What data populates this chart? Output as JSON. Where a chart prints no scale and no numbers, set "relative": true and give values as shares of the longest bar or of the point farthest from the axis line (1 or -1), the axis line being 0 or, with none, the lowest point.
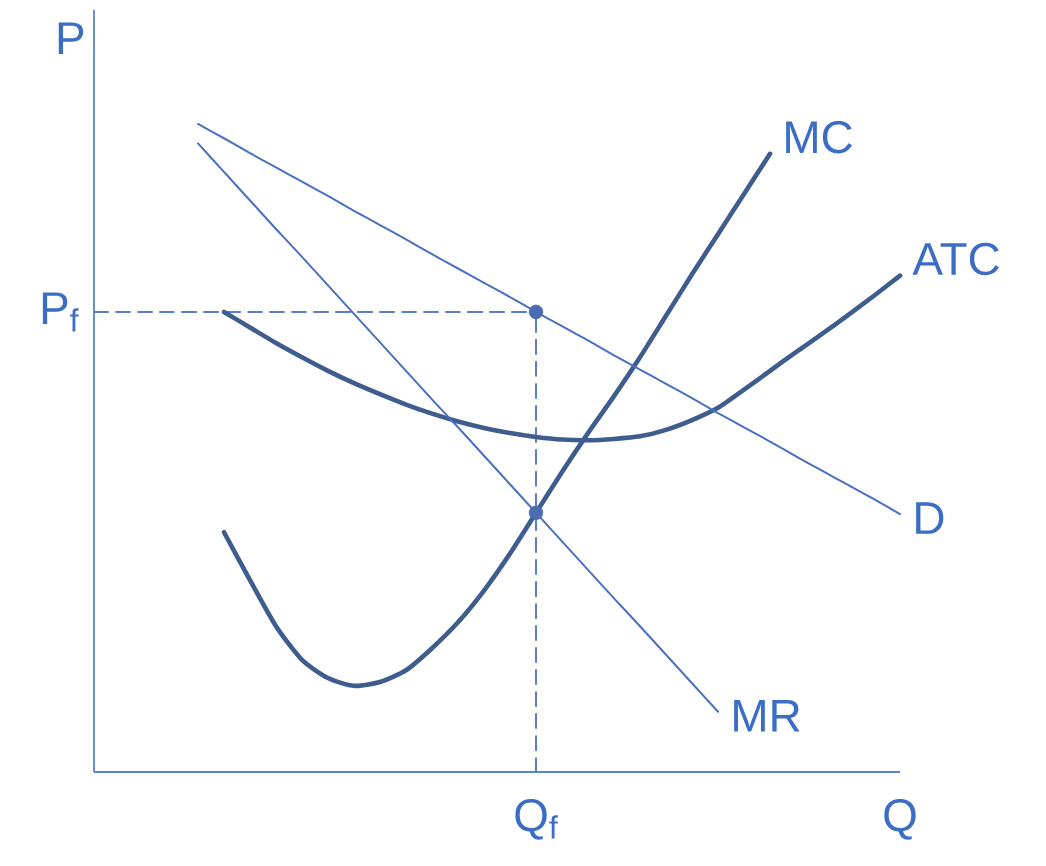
{
  "chart_data": {
    "type": "line",
    "relative": true,
    "ylabel": "P",
    "categories": [
      null,
      null,
      null,
      null,
      null,
      null,
      null,
      null,
      null,
      null,
      null,
      null,
      null,
      null,
      null,
      null,
      null,
      "Q$_{f}$",
      null,
      null,
      null,
      null,
      null,
      null,
      null,
      null,
      null,
      null,
      null,
      null,
      null,
      "Q"
    ],
    "series": [
      {
        "name": "MC",
        "color": "#3e5c8e",
        "values": [
          null,
          null,
          null,
          null,
          null,
          0.37,
          0.296,
          0.225,
          0.173,
          0.145,
          0.133,
          0.139,
          0.157,
          0.191,
          0.231,
          0.28,
          0.337,
          0.4,
          0.463,
          0.523,
          0.58,
          0.64,
          0.704,
          0.768,
          0.83,
          0.892,
          0.954,
          null,
          null,
          null,
          null,
          null
        ]
      },
      {
        "name": "ATC",
        "color": "#3e5c8e",
        "values": [
          null,
          null,
          null,
          null,
          null,
          0.71,
          0.686,
          0.662,
          0.64,
          0.619,
          0.6,
          0.583,
          0.567,
          0.553,
          0.541,
          0.531,
          0.523,
          0.517,
          0.513,
          0.512,
          0.514,
          0.518,
          0.528,
          0.543,
          0.562,
          0.59,
          0.619,
          0.648,
          0.676,
          0.705,
          0.735,
          0.766
        ]
      },
      {
        "name": "D",
        "color": "#4a70bf",
        "values": [
          null,
          null,
          null,
          null,
          1.0,
          0.978,
          0.955,
          0.933,
          0.911,
          0.889,
          0.866,
          0.844,
          0.822,
          0.799,
          0.777,
          0.755,
          0.733,
          0.71,
          0.688,
          0.666,
          0.643,
          0.621,
          0.599,
          0.577,
          0.554,
          0.532,
          0.51,
          0.487,
          0.465,
          0.443,
          0.421,
          0.398
        ]
      },
      {
        "name": "MR",
        "color": "#4a70bf",
        "values": [
          null,
          null,
          null,
          null,
          0.97,
          0.926,
          0.882,
          0.838,
          0.795,
          0.751,
          0.707,
          0.663,
          0.619,
          0.575,
          0.532,
          0.488,
          0.444,
          0.4,
          0.356,
          0.312,
          0.268,
          0.225,
          0.181,
          0.137,
          0.093,
          null,
          null,
          null,
          null,
          null,
          null,
          null
        ]
      },
      {
        "type": "scatter",
        "marker": "circle",
        "color": "#4b6cb0",
        "values": [
          null,
          null,
          null,
          null,
          null,
          null,
          null,
          null,
          null,
          null,
          null,
          null,
          null,
          null,
          null,
          null,
          null,
          0.71,
          null,
          null,
          null,
          null,
          null,
          null,
          null,
          null,
          null,
          null,
          null,
          null,
          null,
          null
        ]
      },
      {
        "type": "scatter",
        "marker": "circle",
        "color": "#4b6cb0",
        "values": [
          null,
          null,
          null,
          null,
          null,
          null,
          null,
          null,
          null,
          null,
          null,
          null,
          null,
          null,
          null,
          null,
          null,
          0.4,
          null,
          null,
          null,
          null,
          null,
          null,
          null,
          null,
          null,
          null,
          null,
          null,
          null,
          null
        ]
      },
      {
        "name": "P$_{f}$",
        "color": "#5b7fc6",
        "line_style": "dashed",
        "values": [
          0.71,
          0.71,
          0.71,
          0.71,
          0.71,
          0.71,
          0.71,
          0.71,
          0.71,
          0.71,
          0.71,
          0.71,
          0.71,
          0.71,
          0.71,
          0.71,
          0.71,
          0.71,
          null,
          null,
          null,
          null,
          null,
          null,
          null,
          null,
          null,
          null,
          null,
          null,
          null,
          null
        ]
      },
      {
        "color": "#5b7fc6",
        "line_style": "dashed",
        "x": [
          "Q$_{f}$",
          "Q$_{f}$"
        ],
        "values": [
          0,
          0.71
        ]
      }
    ]
  }
}
